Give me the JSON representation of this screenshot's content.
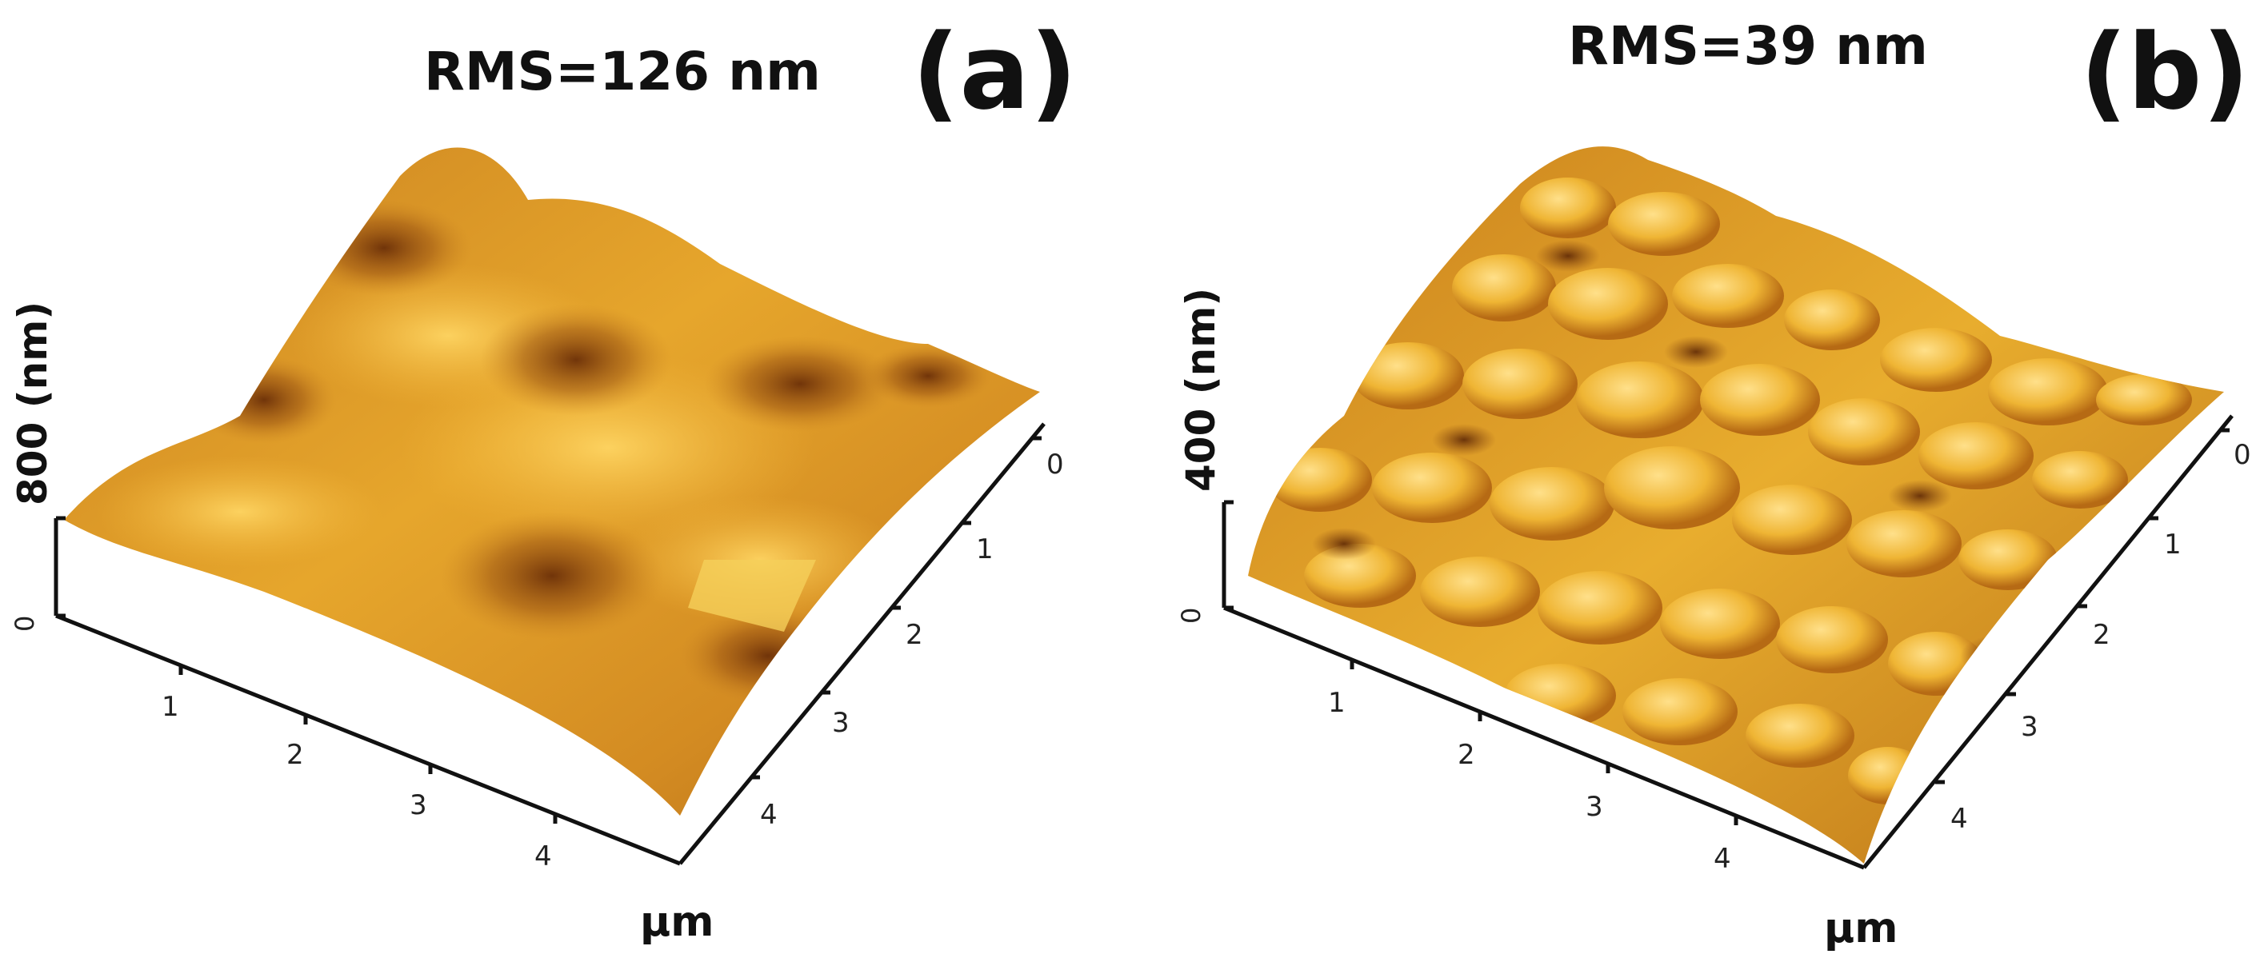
{
  "panels": [
    {
      "letter": "(a)",
      "rms": "RMS=126 nm",
      "z_label": "800 (nm)",
      "z_zero": "0",
      "x_ticks": [
        "1",
        "2",
        "3",
        "4"
      ],
      "y_ticks": [
        "0",
        "1",
        "2",
        "3",
        "4"
      ],
      "unit": "µm"
    },
    {
      "letter": "(b)",
      "rms": "RMS=39 nm",
      "z_label": "400 (nm)",
      "z_zero": "0",
      "x_ticks": [
        "1",
        "2",
        "3",
        "4"
      ],
      "y_ticks": [
        "0",
        "1",
        "2",
        "3",
        "4"
      ],
      "unit": "µm"
    }
  ],
  "colors": {
    "surface_light": "#f2c54a",
    "surface_mid": "#d9921f",
    "surface_dark": "#7a3b0c",
    "axis": "#111111"
  }
}
